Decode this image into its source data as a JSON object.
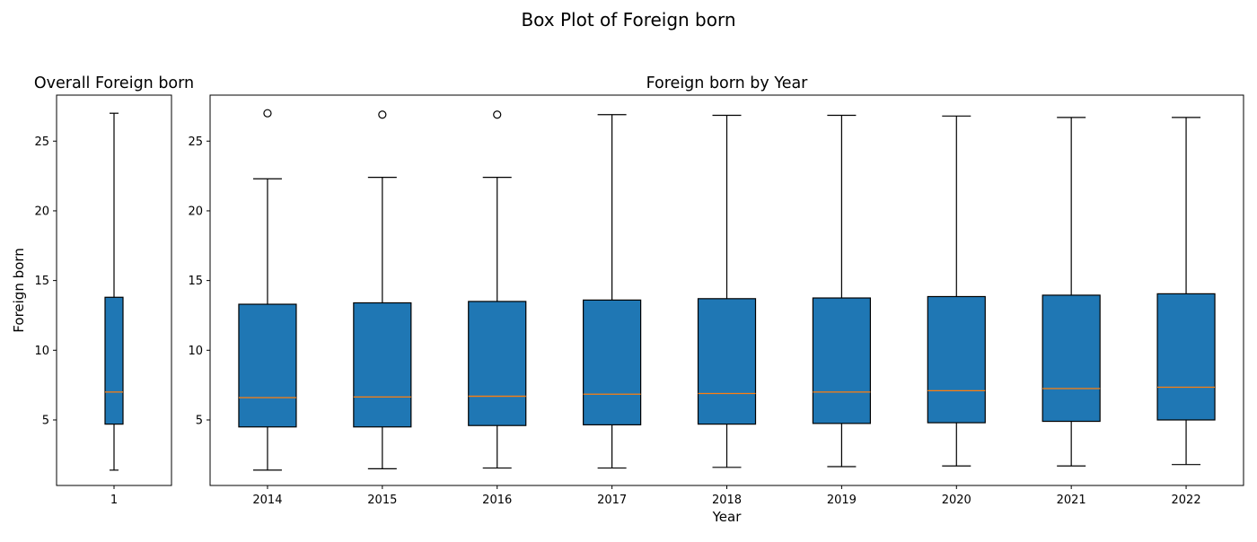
{
  "figure": {
    "suptitle": "Box Plot of Foreign born"
  },
  "colors": {
    "box_fill": "#1f77b4",
    "median": "#ff7f0e",
    "outline": "#000000",
    "background": "#ffffff"
  },
  "chart_data": [
    {
      "type": "box",
      "title": "Overall Foreign born",
      "xlabel": "",
      "ylabel": "Foreign born",
      "ylim": [
        0.3,
        28.3
      ],
      "yticks": [
        5,
        10,
        15,
        20,
        25
      ],
      "grid": false,
      "categories": [
        "1"
      ],
      "boxes": [
        {
          "label": "1",
          "whislo": 1.4,
          "q1": 4.7,
          "median": 7.0,
          "q3": 13.8,
          "whishi": 27.0,
          "fliers": []
        }
      ]
    },
    {
      "type": "box",
      "title": "Foreign born by Year",
      "xlabel": "Year",
      "ylabel": "",
      "ylim": [
        0.3,
        28.3
      ],
      "yticks": [
        5,
        10,
        15,
        20,
        25
      ],
      "grid": false,
      "categories": [
        "2014",
        "2015",
        "2016",
        "2017",
        "2018",
        "2019",
        "2020",
        "2021",
        "2022"
      ],
      "boxes": [
        {
          "label": "2014",
          "whislo": 1.4,
          "q1": 4.5,
          "median": 6.6,
          "q3": 13.3,
          "whishi": 22.3,
          "fliers": [
            27.0
          ]
        },
        {
          "label": "2015",
          "whislo": 1.5,
          "q1": 4.5,
          "median": 6.65,
          "q3": 13.4,
          "whishi": 22.4,
          "fliers": [
            26.9
          ]
        },
        {
          "label": "2016",
          "whislo": 1.55,
          "q1": 4.6,
          "median": 6.7,
          "q3": 13.5,
          "whishi": 22.4,
          "fliers": [
            26.9
          ]
        },
        {
          "label": "2017",
          "whislo": 1.55,
          "q1": 4.65,
          "median": 6.85,
          "q3": 13.6,
          "whishi": 26.9,
          "fliers": []
        },
        {
          "label": "2018",
          "whislo": 1.6,
          "q1": 4.7,
          "median": 6.9,
          "q3": 13.7,
          "whishi": 26.85,
          "fliers": []
        },
        {
          "label": "2019",
          "whislo": 1.65,
          "q1": 4.75,
          "median": 7.0,
          "q3": 13.75,
          "whishi": 26.85,
          "fliers": []
        },
        {
          "label": "2020",
          "whislo": 1.7,
          "q1": 4.8,
          "median": 7.1,
          "q3": 13.85,
          "whishi": 26.8,
          "fliers": []
        },
        {
          "label": "2021",
          "whislo": 1.7,
          "q1": 4.9,
          "median": 7.25,
          "q3": 13.95,
          "whishi": 26.7,
          "fliers": []
        },
        {
          "label": "2022",
          "whislo": 1.8,
          "q1": 5.0,
          "median": 7.35,
          "q3": 14.05,
          "whishi": 26.7,
          "fliers": []
        }
      ]
    }
  ]
}
